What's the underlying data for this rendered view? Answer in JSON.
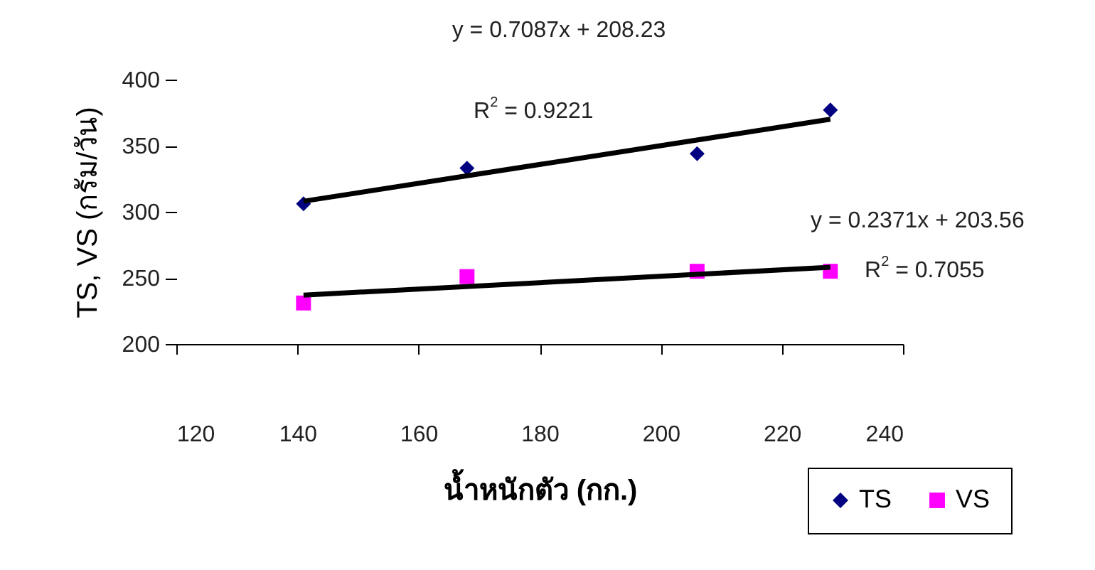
{
  "chart_data": {
    "type": "scatter",
    "xlabel": "น้ำหนักตัว (กก.)",
    "ylabel": "TS, VS (กรัม/วัน)",
    "xlim": [
      120,
      240
    ],
    "xticks": [
      120,
      140,
      160,
      180,
      200,
      220,
      240
    ],
    "ylim": [
      200,
      400
    ],
    "yticks": [
      200,
      250,
      300,
      350,
      400
    ],
    "legend": "bottom right",
    "annotations": [
      "y = 0.7087x + 208.23",
      "R$^{2}$ = 0.9221",
      "y = 0.2371x + 203.56",
      "R$^{2}$ = 0.7055"
    ],
    "series": [
      {
        "name": "TS",
        "color": "#000080",
        "marker": "diamond",
        "x": [
          141,
          168,
          206,
          228
        ],
        "values": [
          306,
          333,
          344,
          377
        ]
      },
      {
        "name": "VS",
        "color": "#ff00ff",
        "marker": "square",
        "x": [
          141,
          168,
          206,
          228
        ],
        "values": [
          231,
          251,
          255,
          255
        ]
      },
      {
        "type": "line",
        "color": "#000000",
        "x": [
          141,
          228
        ],
        "values": [
          308,
          370
        ]
      },
      {
        "type": "line",
        "color": "#000000",
        "x": [
          141,
          228
        ],
        "values": [
          237,
          258
        ]
      }
    ]
  }
}
